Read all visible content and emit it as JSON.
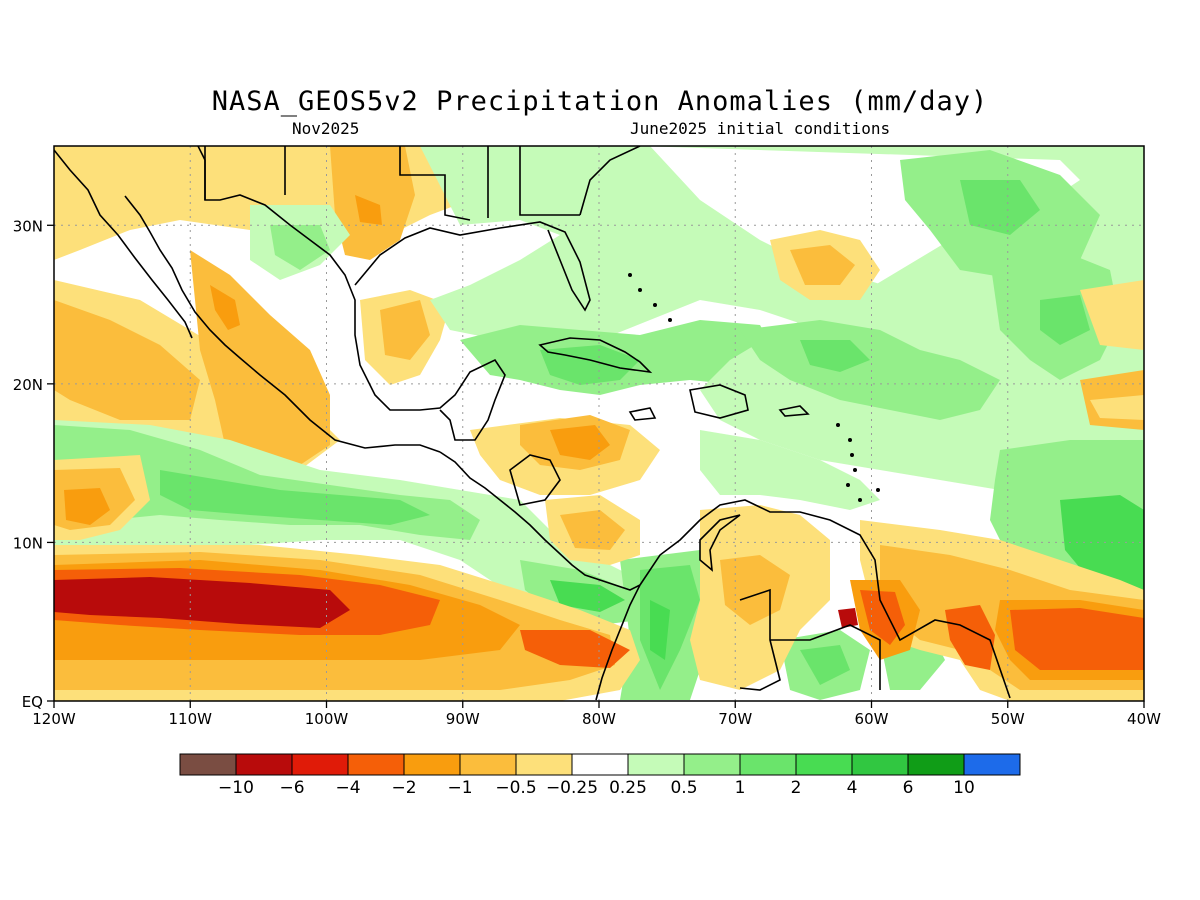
{
  "title": "NASA_GEOS5v2 Precipitation Anomalies (mm/day)",
  "subtitle_left": "Nov2025",
  "subtitle_right": "June2025 initial conditions",
  "map": {
    "lon_ticks": [
      "120W",
      "110W",
      "100W",
      "90W",
      "80W",
      "70W",
      "60W",
      "50W",
      "40W"
    ],
    "lat_ticks": [
      "EQ",
      "10N",
      "20N",
      "30N"
    ],
    "extent": {
      "lon_min": -120,
      "lon_max": -40,
      "lat_min": 0,
      "lat_max": 35
    }
  },
  "colorbar": {
    "labels": [
      "−10",
      "−6",
      "−4",
      "−2",
      "−1",
      "−0.5",
      "−0.25",
      "0.25",
      "0.5",
      "1",
      "2",
      "4",
      "6",
      "10"
    ],
    "colors": [
      "#7a4d42",
      "#b80b0b",
      "#e01b08",
      "#f55f08",
      "#f99d0e",
      "#fbbd3c",
      "#fde07a",
      "#ffffff",
      "#c5fbb8",
      "#94ef8a",
      "#6ae46b",
      "#48dc52",
      "#31c741",
      "#109d17",
      "#1d6bea"
    ]
  },
  "palette": {
    "dry_strong": "#b80b0b",
    "dry": "#f55f08",
    "dry_mod": "#f99d0e",
    "dry_light": "#fbbd3c",
    "dry_weak": "#fde07a",
    "wet_weak": "#c5fbb8",
    "wet_light": "#94ef8a",
    "wet": "#6ae46b",
    "wet_mod": "#48dc52",
    "wet_strong": "#31c741"
  }
}
